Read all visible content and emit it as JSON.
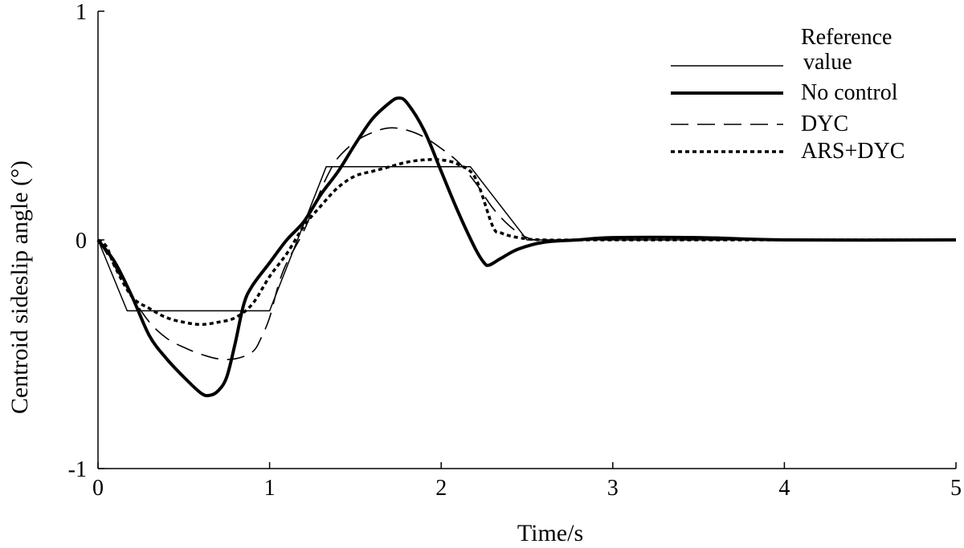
{
  "chart_data": {
    "type": "line",
    "xlabel": "Time/s",
    "ylabel": "Centroid sideslip angle  (°)",
    "xlim": [
      0,
      5
    ],
    "ylim": [
      -1,
      1
    ],
    "x_ticks": [
      "0",
      "1",
      "2",
      "3",
      "4",
      "5"
    ],
    "y_ticks": [
      "-1",
      "0",
      "1"
    ],
    "grid": false,
    "legend_position": "top-right",
    "series": [
      {
        "name": "Reference value",
        "legend_lines": [
          "Reference",
          "value"
        ],
        "style": "thin-solid",
        "color": "#000000",
        "points": [
          [
            0,
            0
          ],
          [
            0.17,
            -0.31
          ],
          [
            1.0,
            -0.31
          ],
          [
            1.33,
            0.32
          ],
          [
            2.17,
            0.32
          ],
          [
            2.5,
            0.0
          ],
          [
            5.0,
            0.0
          ]
        ]
      },
      {
        "name": "No control",
        "style": "thick-solid",
        "color": "#000000",
        "points": [
          [
            0,
            0
          ],
          [
            0.1,
            -0.1
          ],
          [
            0.2,
            -0.25
          ],
          [
            0.3,
            -0.42
          ],
          [
            0.4,
            -0.52
          ],
          [
            0.5,
            -0.6
          ],
          [
            0.6,
            -0.67
          ],
          [
            0.65,
            -0.68
          ],
          [
            0.7,
            -0.66
          ],
          [
            0.75,
            -0.6
          ],
          [
            0.8,
            -0.45
          ],
          [
            0.85,
            -0.28
          ],
          [
            0.9,
            -0.2
          ],
          [
            1.0,
            -0.1
          ],
          [
            1.1,
            0.0
          ],
          [
            1.2,
            0.08
          ],
          [
            1.3,
            0.2
          ],
          [
            1.4,
            0.3
          ],
          [
            1.5,
            0.42
          ],
          [
            1.6,
            0.53
          ],
          [
            1.7,
            0.6
          ],
          [
            1.75,
            0.62
          ],
          [
            1.8,
            0.6
          ],
          [
            1.9,
            0.48
          ],
          [
            2.0,
            0.3
          ],
          [
            2.1,
            0.12
          ],
          [
            2.2,
            -0.04
          ],
          [
            2.25,
            -0.1
          ],
          [
            2.28,
            -0.11
          ],
          [
            2.35,
            -0.08
          ],
          [
            2.45,
            -0.04
          ],
          [
            2.6,
            -0.01
          ],
          [
            2.8,
            0.0
          ],
          [
            3.0,
            0.01
          ],
          [
            3.5,
            0.01
          ],
          [
            4.0,
            0.0
          ],
          [
            5.0,
            0.0
          ]
        ]
      },
      {
        "name": "DYC",
        "style": "dashed",
        "color": "#000000",
        "points": [
          [
            0,
            0
          ],
          [
            0.1,
            -0.12
          ],
          [
            0.2,
            -0.25
          ],
          [
            0.3,
            -0.36
          ],
          [
            0.4,
            -0.43
          ],
          [
            0.5,
            -0.47
          ],
          [
            0.6,
            -0.5
          ],
          [
            0.7,
            -0.52
          ],
          [
            0.8,
            -0.52
          ],
          [
            0.9,
            -0.49
          ],
          [
            0.95,
            -0.43
          ],
          [
            1.0,
            -0.34
          ],
          [
            1.05,
            -0.2
          ],
          [
            1.1,
            -0.1
          ],
          [
            1.2,
            0.04
          ],
          [
            1.3,
            0.22
          ],
          [
            1.35,
            0.3
          ],
          [
            1.4,
            0.36
          ],
          [
            1.5,
            0.43
          ],
          [
            1.6,
            0.47
          ],
          [
            1.7,
            0.49
          ],
          [
            1.8,
            0.48
          ],
          [
            1.9,
            0.45
          ],
          [
            2.0,
            0.4
          ],
          [
            2.1,
            0.34
          ],
          [
            2.2,
            0.25
          ],
          [
            2.3,
            0.14
          ],
          [
            2.4,
            0.06
          ],
          [
            2.5,
            0.01
          ],
          [
            2.6,
            0.0
          ],
          [
            3.0,
            0.0
          ],
          [
            5.0,
            0.0
          ]
        ]
      },
      {
        "name": "ARS+DYC",
        "style": "dotted",
        "color": "#000000",
        "points": [
          [
            0,
            0
          ],
          [
            0.05,
            -0.03
          ],
          [
            0.1,
            -0.12
          ],
          [
            0.2,
            -0.25
          ],
          [
            0.3,
            -0.3
          ],
          [
            0.4,
            -0.34
          ],
          [
            0.5,
            -0.36
          ],
          [
            0.6,
            -0.37
          ],
          [
            0.7,
            -0.36
          ],
          [
            0.8,
            -0.34
          ],
          [
            0.9,
            -0.28
          ],
          [
            1.0,
            -0.16
          ],
          [
            1.1,
            -0.06
          ],
          [
            1.2,
            0.06
          ],
          [
            1.3,
            0.15
          ],
          [
            1.4,
            0.23
          ],
          [
            1.5,
            0.28
          ],
          [
            1.6,
            0.3
          ],
          [
            1.7,
            0.32
          ],
          [
            1.8,
            0.34
          ],
          [
            1.9,
            0.35
          ],
          [
            2.0,
            0.35
          ],
          [
            2.1,
            0.33
          ],
          [
            2.2,
            0.27
          ],
          [
            2.3,
            0.06
          ],
          [
            2.35,
            0.03
          ],
          [
            2.45,
            0.01
          ],
          [
            2.6,
            0.0
          ],
          [
            3.0,
            0.0
          ],
          [
            5.0,
            0.0
          ]
        ]
      }
    ]
  }
}
